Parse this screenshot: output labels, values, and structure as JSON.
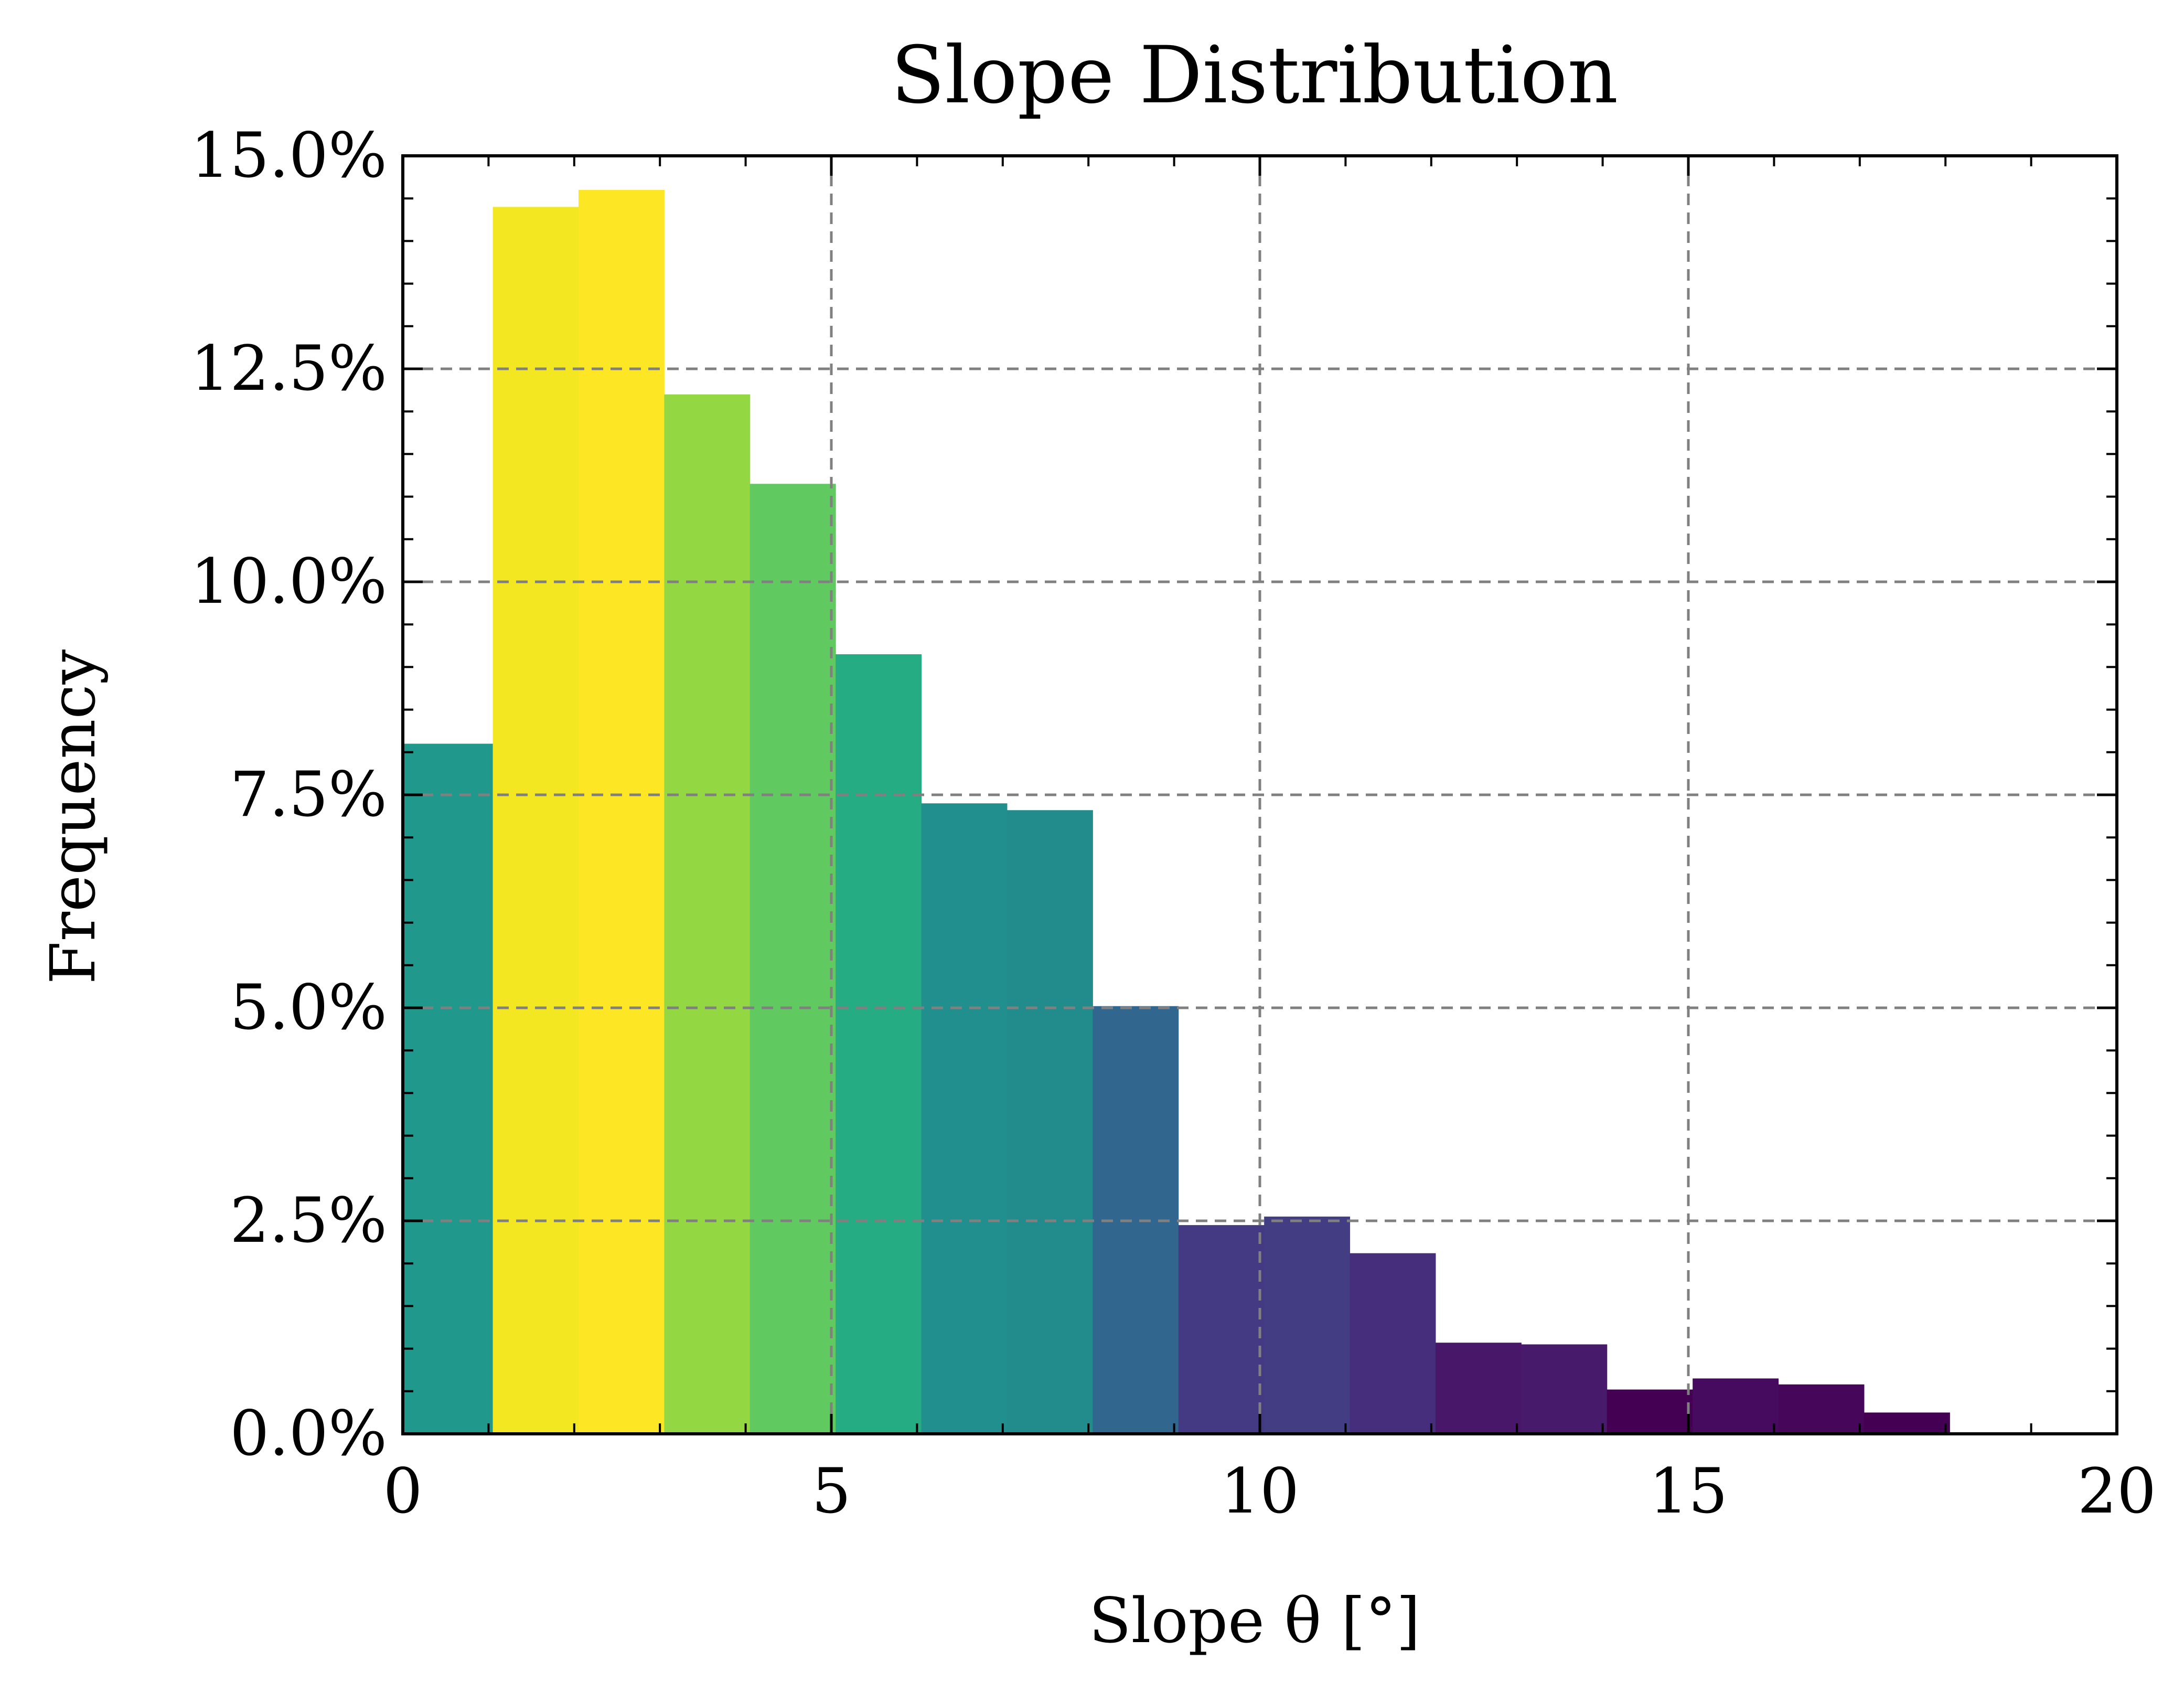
{
  "chart_data": {
    "type": "bar",
    "title": "Slope Distribution",
    "xlabel": "Slope θ [°]",
    "ylabel": "Frequency",
    "xlim": [
      0,
      20
    ],
    "ylim": [
      0,
      15
    ],
    "x_ticks": [
      0,
      5,
      10,
      15,
      20
    ],
    "x_tick_labels": [
      "0",
      "5",
      "10",
      "15",
      "20"
    ],
    "y_ticks": [
      0,
      2.5,
      5,
      7.5,
      10,
      12.5,
      15
    ],
    "y_tick_labels": [
      "0.0%",
      "2.5%",
      "5.0%",
      "7.5%",
      "10.0%",
      "12.5%",
      "15.0%"
    ],
    "y_unit": "percent",
    "grid": true,
    "grid_style": "dashed",
    "bins": [
      {
        "x0": 0.0,
        "x1": 1.05,
        "value": 8.1,
        "color": "#20988c"
      },
      {
        "x0": 1.05,
        "x1": 2.05,
        "value": 14.4,
        "color": "#f3e721"
      },
      {
        "x0": 2.05,
        "x1": 3.05,
        "value": 14.6,
        "color": "#fde725"
      },
      {
        "x0": 3.05,
        "x1": 4.05,
        "value": 12.2,
        "color": "#93d742"
      },
      {
        "x0": 4.05,
        "x1": 5.05,
        "value": 11.15,
        "color": "#60ca60"
      },
      {
        "x0": 5.05,
        "x1": 6.05,
        "value": 9.15,
        "color": "#25ac82"
      },
      {
        "x0": 6.05,
        "x1": 7.05,
        "value": 7.4,
        "color": "#218f8d"
      },
      {
        "x0": 7.05,
        "x1": 8.05,
        "value": 7.32,
        "color": "#228c8d"
      },
      {
        "x0": 8.05,
        "x1": 9.05,
        "value": 5.02,
        "color": "#31668e"
      },
      {
        "x0": 9.05,
        "x1": 10.05,
        "value": 2.45,
        "color": "#443983"
      },
      {
        "x0": 10.05,
        "x1": 11.05,
        "value": 2.55,
        "color": "#433d84"
      },
      {
        "x0": 11.05,
        "x1": 12.05,
        "value": 2.12,
        "color": "#472e7c"
      },
      {
        "x0": 12.05,
        "x1": 13.05,
        "value": 1.07,
        "color": "#481769"
      },
      {
        "x0": 13.05,
        "x1": 14.05,
        "value": 1.05,
        "color": "#481a6c"
      },
      {
        "x0": 14.05,
        "x1": 15.05,
        "value": 0.52,
        "color": "#440154"
      },
      {
        "x0": 15.05,
        "x1": 16.05,
        "value": 0.65,
        "color": "#460b5e"
      },
      {
        "x0": 16.05,
        "x1": 17.05,
        "value": 0.58,
        "color": "#46075a"
      },
      {
        "x0": 17.05,
        "x1": 18.05,
        "value": 0.25,
        "color": "#440154"
      }
    ]
  }
}
